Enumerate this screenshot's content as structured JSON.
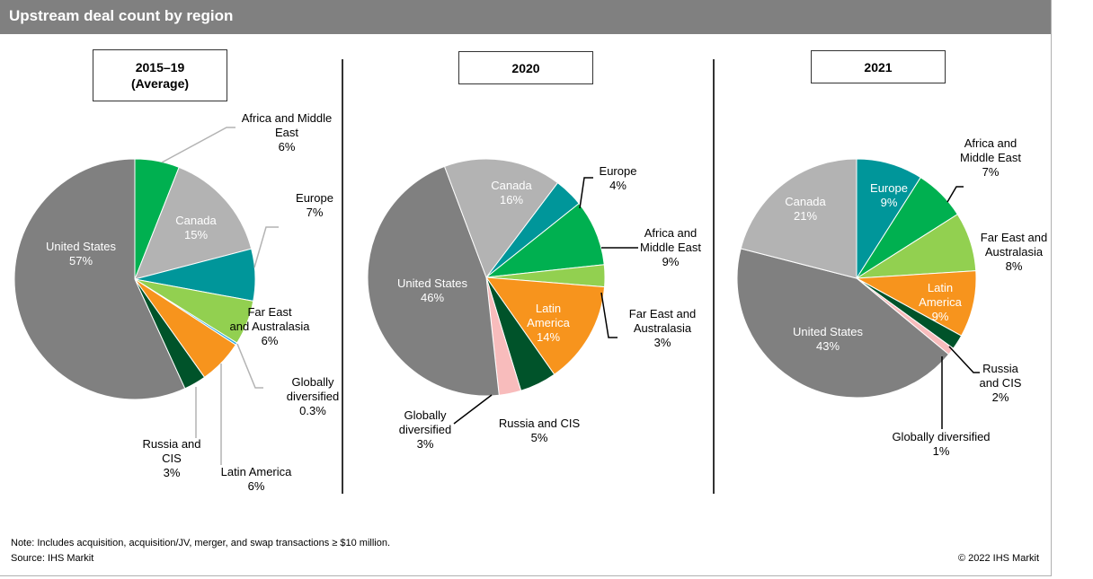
{
  "header": {
    "title": "Upstream deal count by region"
  },
  "colors": {
    "United States": "#808080",
    "Canada": "#b3b3b3",
    "Europe": "#00969a",
    "Africa and Middle East": "#00b050",
    "Far East and Australasia": "#92d050",
    "Latin America": "#f7941d",
    "Russia and CIS": "#00532a",
    "Globally diversified": "#f8bcbc",
    "Globally diversified (2015-19)": "#29a9e0"
  },
  "chart_data": [
    {
      "type": "pie",
      "title": "2015–19 (Average)",
      "title_lines": [
        "2015–19",
        "(Average)"
      ],
      "slices": [
        {
          "name": "Africa and Middle East",
          "value": 6,
          "label_lines": [
            "Africa and Middle",
            "East",
            "6%"
          ]
        },
        {
          "name": "Canada",
          "value": 15,
          "label_lines": [
            "Canada",
            "15%"
          ]
        },
        {
          "name": "Europe",
          "value": 7,
          "label_lines": [
            "Europe",
            "7%"
          ]
        },
        {
          "name": "Far East and Australasia",
          "value": 6,
          "label_lines": [
            "Far East",
            "and Australasia",
            "6%"
          ]
        },
        {
          "name": "Globally diversified",
          "value": 0.3,
          "label_lines": [
            "Globally",
            "diversified",
            "0.3%"
          ]
        },
        {
          "name": "Latin America",
          "value": 6,
          "label_lines": [
            "Latin America",
            "6%"
          ]
        },
        {
          "name": "Russia and CIS",
          "value": 3,
          "label_lines": [
            "Russia and",
            "CIS",
            "3%"
          ]
        },
        {
          "name": "United States",
          "value": 57,
          "label_lines": [
            "United States",
            "57%"
          ]
        }
      ]
    },
    {
      "type": "pie",
      "title": "2020",
      "title_lines": [
        "2020"
      ],
      "slices": [
        {
          "name": "Europe",
          "value": 4,
          "label_lines": [
            "Europe",
            "4%"
          ]
        },
        {
          "name": "Africa and Middle East",
          "value": 9,
          "label_lines": [
            "Africa and",
            "Middle East",
            "9%"
          ]
        },
        {
          "name": "Far East and Australasia",
          "value": 3,
          "label_lines": [
            "Far East and",
            "Australasia",
            "3%"
          ]
        },
        {
          "name": "Latin America",
          "value": 14,
          "label_lines": [
            "Latin",
            "America",
            "14%"
          ]
        },
        {
          "name": "Russia and CIS",
          "value": 5,
          "label_lines": [
            "Russia and CIS",
            "5%"
          ]
        },
        {
          "name": "Globally diversified",
          "value": 3,
          "label_lines": [
            "Globally",
            "diversified",
            "3%"
          ]
        },
        {
          "name": "United States",
          "value": 46,
          "label_lines": [
            "United States",
            "46%"
          ]
        },
        {
          "name": "Canada",
          "value": 16,
          "label_lines": [
            "Canada",
            "16%"
          ]
        }
      ]
    },
    {
      "type": "pie",
      "title": "2021",
      "title_lines": [
        "2021"
      ],
      "slices": [
        {
          "name": "Europe",
          "value": 9,
          "label_lines": [
            "Europe",
            "9%"
          ]
        },
        {
          "name": "Africa and Middle East",
          "value": 7,
          "label_lines": [
            "Africa and",
            "Middle East",
            "7%"
          ]
        },
        {
          "name": "Far East and Australasia",
          "value": 8,
          "label_lines": [
            "Far East and",
            "Australasia",
            "8%"
          ]
        },
        {
          "name": "Latin America",
          "value": 9,
          "label_lines": [
            "Latin",
            "America",
            "9%"
          ]
        },
        {
          "name": "Russia and CIS",
          "value": 2,
          "label_lines": [
            "Russia",
            "and CIS",
            "2%"
          ]
        },
        {
          "name": "Globally diversified",
          "value": 1,
          "label_lines": [
            "Globally diversified",
            "1%"
          ]
        },
        {
          "name": "United States",
          "value": 43,
          "label_lines": [
            "United States",
            "43%"
          ]
        },
        {
          "name": "Canada",
          "value": 21,
          "label_lines": [
            "Canada",
            "21%"
          ]
        }
      ]
    }
  ],
  "footer": {
    "note": "Note: Includes acquisition, acquisition/JV, merger, and swap transactions ≥ $10 million.",
    "source": "Source: IHS Markit",
    "copyright": "© 2022 IHS Markit"
  }
}
